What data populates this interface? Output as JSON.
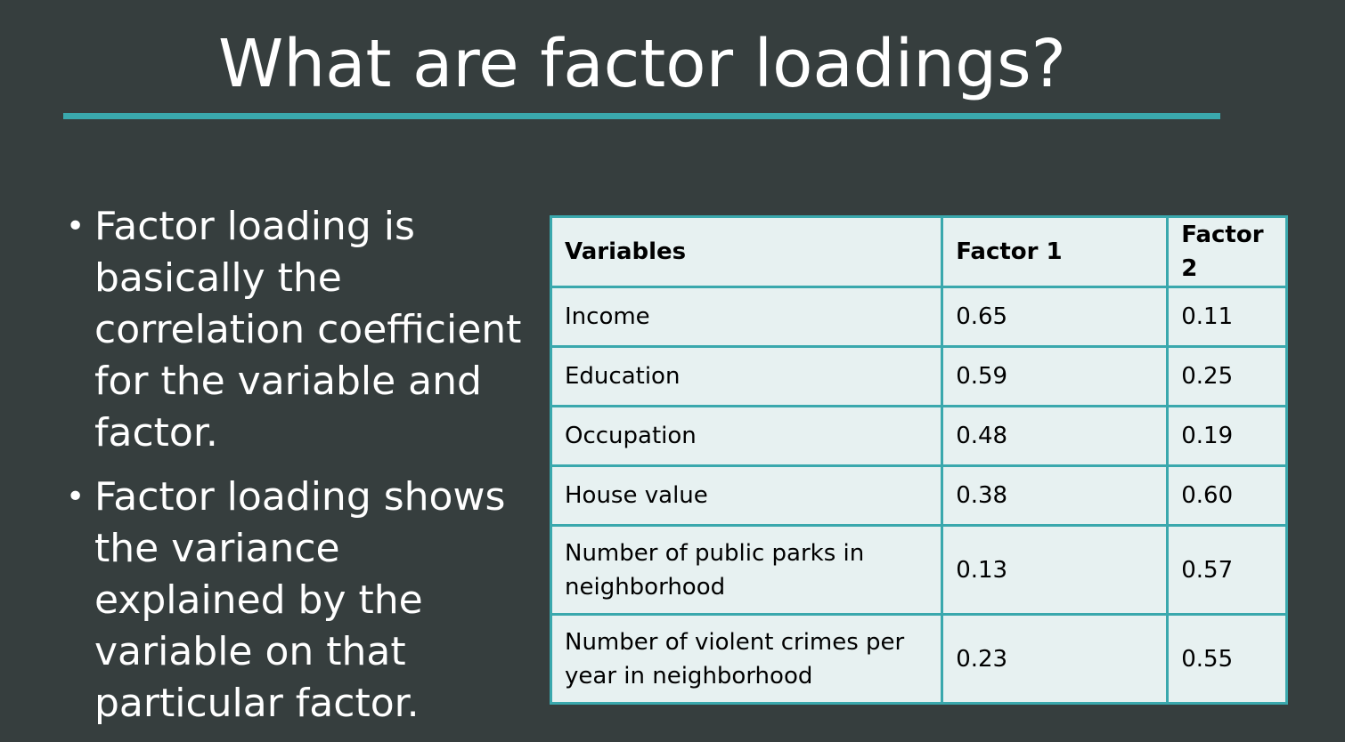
{
  "slide": {
    "title": "What are factor loadings?",
    "accent_color": "#3aa8ad",
    "background_color": "#363e3e"
  },
  "bullets": [
    "Factor loading is basically the correlation coefficient for the variable and factor.",
    "Factor loading shows the variance explained by the variable on that particular factor."
  ],
  "table": {
    "headers": [
      "Variables",
      "Factor 1",
      "Factor 2"
    ],
    "rows": [
      [
        "Income",
        "0.65",
        "0.11"
      ],
      [
        "Education",
        "0.59",
        "0.25"
      ],
      [
        "Occupation",
        "0.48",
        "0.19"
      ],
      [
        "House value",
        "0.38",
        "0.60"
      ],
      [
        "Number of public parks in neighborhood",
        "0.13",
        "0.57"
      ],
      [
        "Number of violent crimes per year in neighborhood",
        "0.23",
        "0.55"
      ]
    ]
  }
}
